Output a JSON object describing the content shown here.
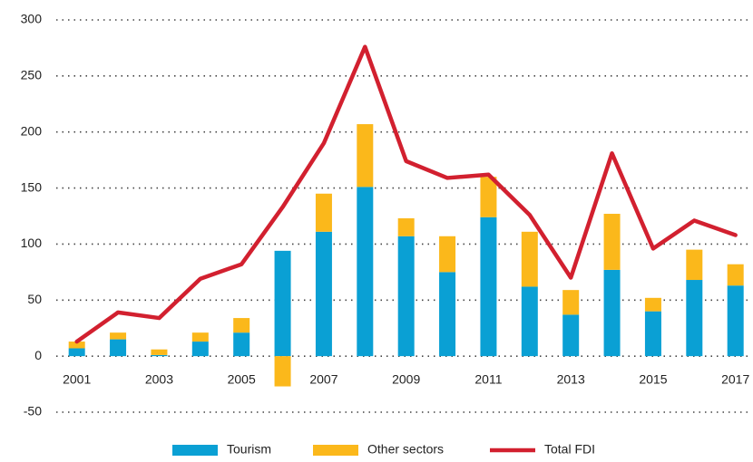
{
  "chart_data": {
    "type": "bar",
    "categories": [
      "2001",
      null,
      "2003",
      null,
      "2005",
      null,
      "2007",
      null,
      "2009",
      null,
      "2011",
      null,
      "2013",
      null,
      "2015",
      null,
      "2017"
    ],
    "series": [
      {
        "name": "Tourism",
        "color": "#0aa0d4",
        "values": [
          7,
          15,
          1,
          13,
          21,
          94,
          111,
          151,
          107,
          75,
          124,
          62,
          37,
          77,
          40,
          68,
          63
        ]
      },
      {
        "name": "Other sectors",
        "color": "#fbb81b",
        "values": [
          6,
          6,
          5,
          8,
          13,
          -27,
          34,
          56,
          16,
          32,
          36,
          49,
          22,
          50,
          12,
          27,
          19
        ]
      },
      {
        "name": "Total FDI",
        "color": "#d2202f",
        "type": "line",
        "values": [
          13,
          39,
          34,
          69,
          82,
          133,
          190,
          276,
          174,
          159,
          162,
          126,
          70,
          181,
          96,
          121,
          108
        ]
      }
    ],
    "ylim": [
      -50,
      300
    ],
    "yticks": [
      -50,
      0,
      50,
      100,
      150,
      200,
      250,
      300
    ],
    "grid": true
  }
}
